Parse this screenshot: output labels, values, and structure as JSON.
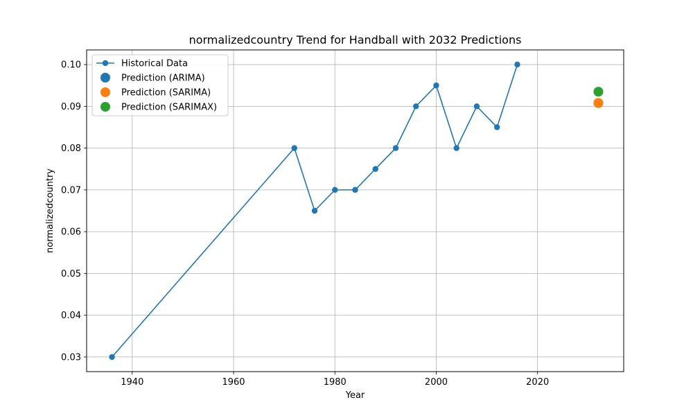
{
  "chart_data": {
    "type": "line",
    "title": "normalizedcountry Trend for Handball with 2032 Predictions",
    "xlabel": "Year",
    "ylabel": "normalizedcountry",
    "xlim": [
      1931,
      2037
    ],
    "ylim": [
      0.0265,
      0.1035
    ],
    "x_ticks": [
      1940,
      1960,
      1980,
      2000,
      2020
    ],
    "y_ticks": [
      0.03,
      0.04,
      0.05,
      0.06,
      0.07,
      0.08,
      0.09,
      0.1
    ],
    "grid": true,
    "legend_position": "top-left",
    "series": [
      {
        "name": "Historical Data",
        "kind": "line",
        "color": "#1f77b4",
        "x": [
          1936,
          1972,
          1976,
          1980,
          1984,
          1988,
          1992,
          1996,
          2000,
          2004,
          2008,
          2012,
          2016
        ],
        "y": [
          0.03,
          0.08,
          0.065,
          0.07,
          0.07,
          0.075,
          0.08,
          0.09,
          0.095,
          0.08,
          0.09,
          0.085,
          0.1
        ]
      },
      {
        "name": "Prediction (ARIMA)",
        "kind": "scatter",
        "color": "#1f77b4",
        "x": [
          2032
        ],
        "y": [
          0.0908
        ]
      },
      {
        "name": "Prediction (SARIMA)",
        "kind": "scatter",
        "color": "#ff7f0e",
        "x": [
          2032
        ],
        "y": [
          0.0908
        ]
      },
      {
        "name": "Prediction (SARIMAX)",
        "kind": "scatter",
        "color": "#2ca02c",
        "x": [
          2032
        ],
        "y": [
          0.0935
        ]
      }
    ]
  }
}
